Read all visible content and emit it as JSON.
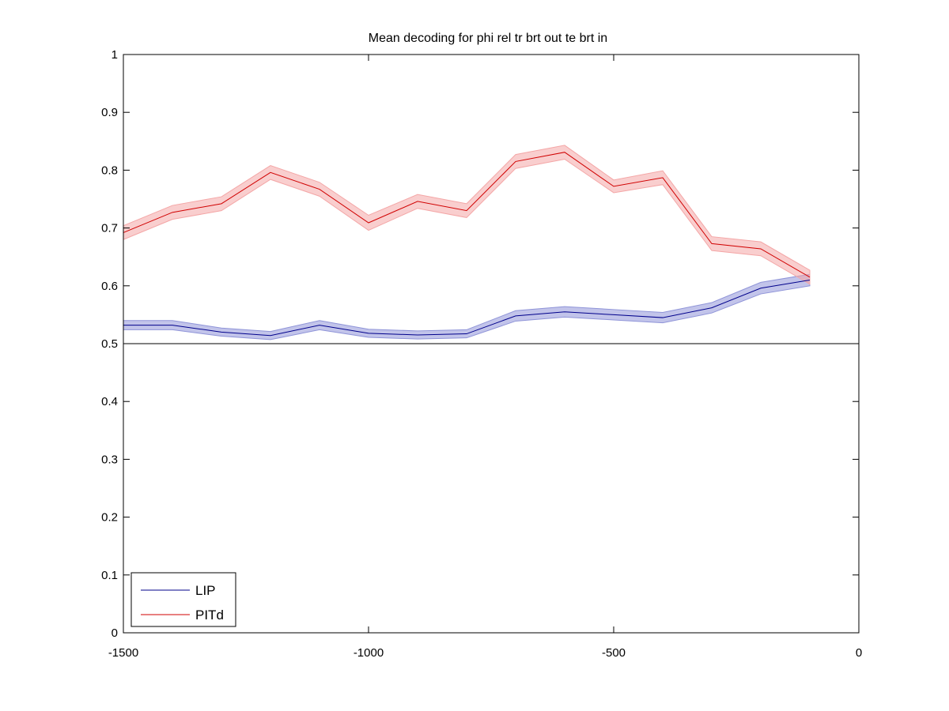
{
  "chart_data": {
    "type": "line",
    "title": "Mean decoding for phi rel tr brt out te brt in",
    "xlabel": "",
    "ylabel": "",
    "xlim": [
      -1500,
      0
    ],
    "ylim": [
      0,
      1
    ],
    "x_ticks": [
      -1500,
      -1000,
      -500,
      0
    ],
    "y_ticks": [
      0,
      0.1,
      0.2,
      0.3,
      0.4,
      0.5,
      0.6,
      0.7,
      0.8,
      0.9,
      1
    ],
    "x_tick_labels": [
      "-1500",
      "-1000",
      "-500",
      "0"
    ],
    "y_tick_labels": [
      "0",
      "0.1",
      "0.2",
      "0.3",
      "0.4",
      "0.5",
      "0.6",
      "0.7",
      "0.8",
      "0.9",
      "1"
    ],
    "reference_line": 0.5,
    "grid": false,
    "legend_position": "bottom-left",
    "x": [
      -1500,
      -1400,
      -1300,
      -1200,
      -1100,
      -1000,
      -900,
      -800,
      -700,
      -600,
      -500,
      -400,
      -300,
      -200,
      -100
    ],
    "series": [
      {
        "name": "LIP",
        "color": "#00008b",
        "band_color": "#8f94d8",
        "values": [
          0.532,
          0.532,
          0.52,
          0.514,
          0.532,
          0.518,
          0.515,
          0.517,
          0.548,
          0.555,
          0.55,
          0.545,
          0.562,
          0.596,
          0.61
        ],
        "error": [
          0.008,
          0.008,
          0.007,
          0.007,
          0.008,
          0.007,
          0.007,
          0.007,
          0.009,
          0.009,
          0.009,
          0.009,
          0.009,
          0.01,
          0.01
        ]
      },
      {
        "name": "PITd",
        "color": "#d00000",
        "band_color": "#f4a6a6",
        "values": [
          0.692,
          0.727,
          0.742,
          0.796,
          0.767,
          0.709,
          0.746,
          0.73,
          0.815,
          0.831,
          0.772,
          0.787,
          0.673,
          0.664,
          0.615
        ],
        "error": [
          0.012,
          0.012,
          0.012,
          0.012,
          0.012,
          0.013,
          0.012,
          0.012,
          0.012,
          0.012,
          0.011,
          0.012,
          0.012,
          0.012,
          0.012
        ]
      }
    ]
  }
}
